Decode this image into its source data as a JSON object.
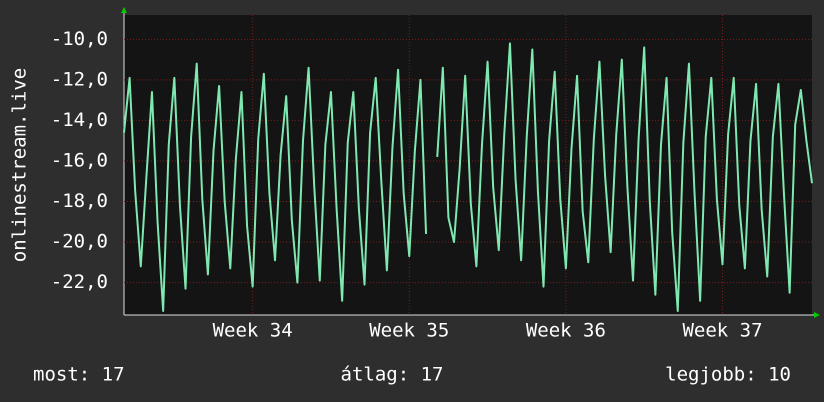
{
  "chart_data": {
    "type": "line",
    "y_label": "onlinestream.live",
    "footer": [
      "most: 17",
      "átlag: 17",
      "legjobb: 10"
    ],
    "xlim": [
      0,
      123
    ],
    "xticks": [
      {
        "value": 23,
        "label": "Week 34"
      },
      {
        "value": 51,
        "label": "Week 35"
      },
      {
        "value": 79,
        "label": "Week 36"
      },
      {
        "value": 107,
        "label": "Week 37"
      }
    ],
    "ylim": [
      -23.6,
      -8.8
    ],
    "yticks": [
      {
        "value": -22,
        "label": "-22,0"
      },
      {
        "value": -20,
        "label": "-20,0"
      },
      {
        "value": -18,
        "label": "-18,0"
      },
      {
        "value": -16,
        "label": "-16,0"
      },
      {
        "value": -14,
        "label": "-14,0"
      },
      {
        "value": -12,
        "label": "-12,0"
      },
      {
        "value": -10,
        "label": "-10,0"
      }
    ],
    "grid": true,
    "series": [
      {
        "color": "#7fe8b0",
        "values": [
          -14.6,
          -11.9,
          -17.5,
          -21.2,
          -16.8,
          -12.6,
          -19.0,
          -23.4,
          -15.2,
          -11.9,
          -18.2,
          -22.3,
          -14.8,
          -11.2,
          -17.9,
          -21.6,
          -15.5,
          -12.3,
          -18.0,
          -21.3,
          -15.9,
          -12.6,
          -19.2,
          -22.2,
          -14.9,
          -11.7,
          -17.6,
          -20.9,
          -15.7,
          -12.8,
          -18.9,
          -22.0,
          -15.0,
          -11.4,
          -17.2,
          -21.9,
          -15.2,
          -12.6,
          -18.3,
          -22.9,
          -15.1,
          -12.6,
          -18.4,
          -22.1,
          -14.6,
          -11.9,
          -17.0,
          -21.4,
          -15.3,
          -11.5,
          -17.6,
          -20.7,
          -15.5,
          -12.0,
          -19.6,
          null,
          -15.8,
          -11.4,
          -18.8,
          -20.0,
          -16.4,
          -11.8,
          -18.1,
          -21.2,
          -15.2,
          -11.1,
          -17.3,
          -20.4,
          -14.6,
          -10.2,
          -16.9,
          -20.9,
          -14.8,
          -10.5,
          -17.5,
          -22.2,
          -15.0,
          -11.6,
          -17.9,
          -21.3,
          -15.4,
          -11.8,
          -18.5,
          -21.0,
          -14.9,
          -11.1,
          -16.7,
          -20.5,
          -14.7,
          -11.0,
          -17.3,
          -21.9,
          -14.9,
          -10.4,
          -18.0,
          -22.6,
          -15.2,
          -11.9,
          -19.5,
          -23.4,
          -15.1,
          -11.2,
          -17.6,
          -22.9,
          -14.8,
          -11.9,
          -17.9,
          -21.1,
          -14.7,
          -11.9,
          -18.2,
          -21.3,
          -15.0,
          -12.2,
          -18.4,
          -21.7,
          -14.8,
          -12.2,
          -17.7,
          -22.5,
          -14.2,
          -12.5,
          -15.0,
          -17.1
        ]
      }
    ]
  }
}
